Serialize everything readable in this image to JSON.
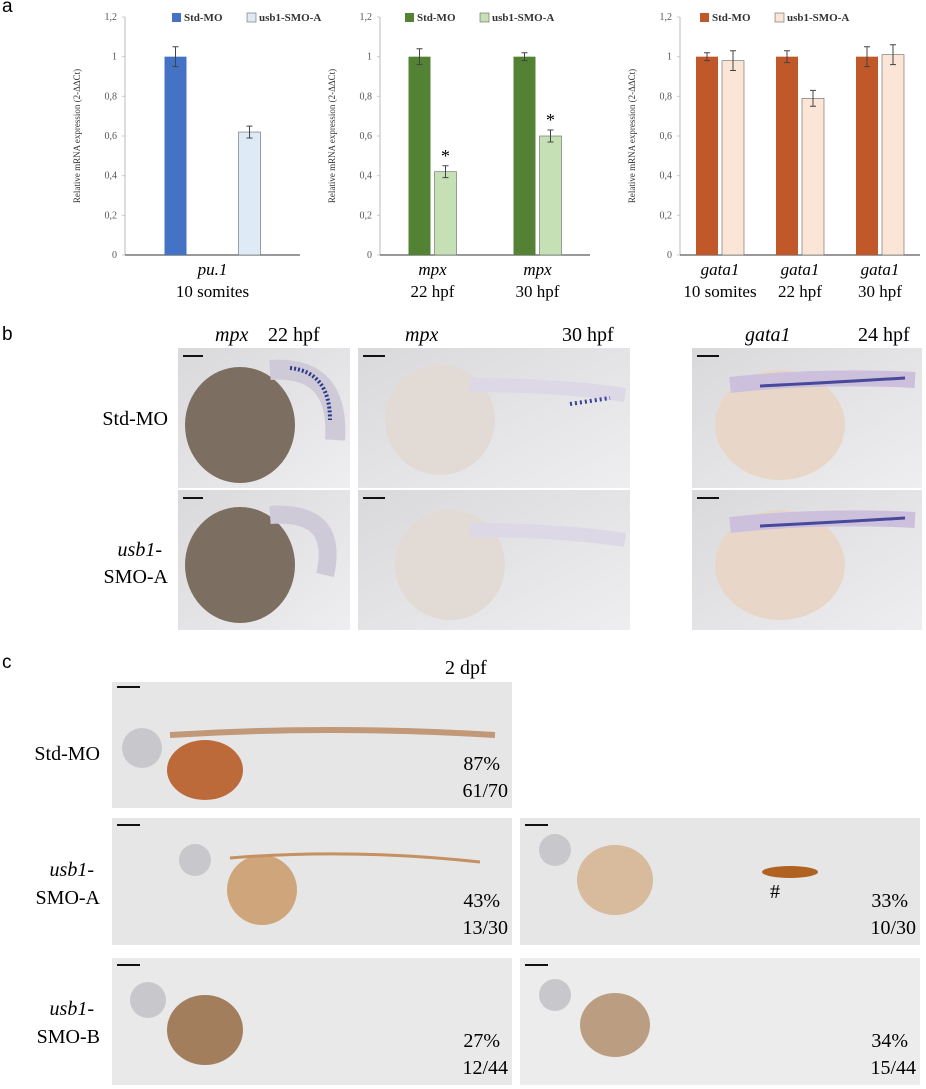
{
  "panel_labels": [
    "a",
    "b",
    "c"
  ],
  "chart_data": [
    {
      "type": "bar",
      "ylabel": "Relative mRNA expression (2-ΔΔCt)",
      "categories": [
        "pu.1"
      ],
      "category_sublabels": [
        "10 somites"
      ],
      "ylim": [
        0,
        1.2
      ],
      "yticks": [
        0,
        {
          "value": 0.2,
          "label": "0,2"
        },
        {
          "value": 0.4,
          "label": "0,4"
        },
        {
          "value": 0.6,
          "label": "0,6"
        },
        {
          "value": 0.8,
          "label": "0,8"
        },
        1,
        {
          "value": 1.2,
          "label": "1,2"
        }
      ],
      "series": [
        {
          "name": "Std-MO",
          "color": "#4472c4",
          "values": [
            1.0
          ],
          "errors": [
            0.05
          ]
        },
        {
          "name": "usb1-SMO-A",
          "color": "#deebf7",
          "values": [
            0.62
          ],
          "errors": [
            0.03
          ]
        }
      ]
    },
    {
      "type": "bar",
      "ylabel": "Relative mRNA expression (2-ΔΔCt)",
      "categories": [
        "mpx",
        "mpx"
      ],
      "category_sublabels": [
        "22 hpf",
        "30 hpf"
      ],
      "ylim": [
        0,
        1.2
      ],
      "yticks": [
        0,
        {
          "value": 0.2,
          "label": "0,2"
        },
        {
          "value": 0.4,
          "label": "0,4"
        },
        {
          "value": 0.6,
          "label": "0,6"
        },
        {
          "value": 0.8,
          "label": "0,8"
        },
        1,
        {
          "value": 1.2,
          "label": "1,2"
        }
      ],
      "series": [
        {
          "name": "Std-MO",
          "color": "#548235",
          "values": [
            1.0,
            1.0
          ],
          "errors": [
            0.04,
            0.02
          ]
        },
        {
          "name": "usb1-SMO-A",
          "color": "#c5e0b4",
          "values": [
            0.42,
            0.6
          ],
          "errors": [
            0.03,
            0.03
          ],
          "markers": [
            "*",
            "*"
          ]
        }
      ]
    },
    {
      "type": "bar",
      "ylabel": "Relative mRNA expression (2-ΔΔCt)",
      "categories": [
        "gata1",
        "gata1",
        "gata1"
      ],
      "category_sublabels": [
        "10 somites",
        "22 hpf",
        "30 hpf"
      ],
      "ylim": [
        0,
        1.2
      ],
      "yticks": [
        0,
        {
          "value": 0.2,
          "label": "0,2"
        },
        {
          "value": 0.4,
          "label": "0,4"
        },
        {
          "value": 0.6,
          "label": "0,6"
        },
        {
          "value": 0.8,
          "label": "0,8"
        },
        1,
        {
          "value": 1.2,
          "label": "1,2"
        }
      ],
      "series": [
        {
          "name": "Std-MO",
          "color": "#c0582a",
          "values": [
            1.0,
            1.0,
            1.0
          ],
          "errors": [
            0.02,
            0.03,
            0.05
          ]
        },
        {
          "name": "usb1-SMO-A",
          "color": "#fbe5d6",
          "values": [
            0.98,
            0.79,
            1.01
          ],
          "errors": [
            0.05,
            0.04,
            0.05
          ]
        }
      ]
    }
  ],
  "panel_b": {
    "columns": [
      {
        "gene": "mpx",
        "stage": "22 hpf"
      },
      {
        "gene": "mpx",
        "stage": "30 hpf"
      },
      {
        "gene": "gata1",
        "stage": "24 hpf"
      }
    ],
    "rows": [
      [
        "Std-MO"
      ],
      [
        "usb1-",
        "SMO-A"
      ]
    ]
  },
  "panel_c": {
    "stage": "2 dpf",
    "rows": [
      [
        "Std-MO"
      ],
      [
        "usb1-",
        "SMO-A"
      ],
      [
        "usb1-",
        "SMO-B"
      ]
    ],
    "images": [
      {
        "percent": "87%",
        "count": "61/70"
      },
      {
        "percent": "43%",
        "count": "13/30"
      },
      {
        "percent": "33%",
        "count": "10/30",
        "mark": "#"
      },
      {
        "percent": "27%",
        "count": "12/44"
      },
      {
        "percent": "34%",
        "count": "15/44"
      }
    ]
  }
}
